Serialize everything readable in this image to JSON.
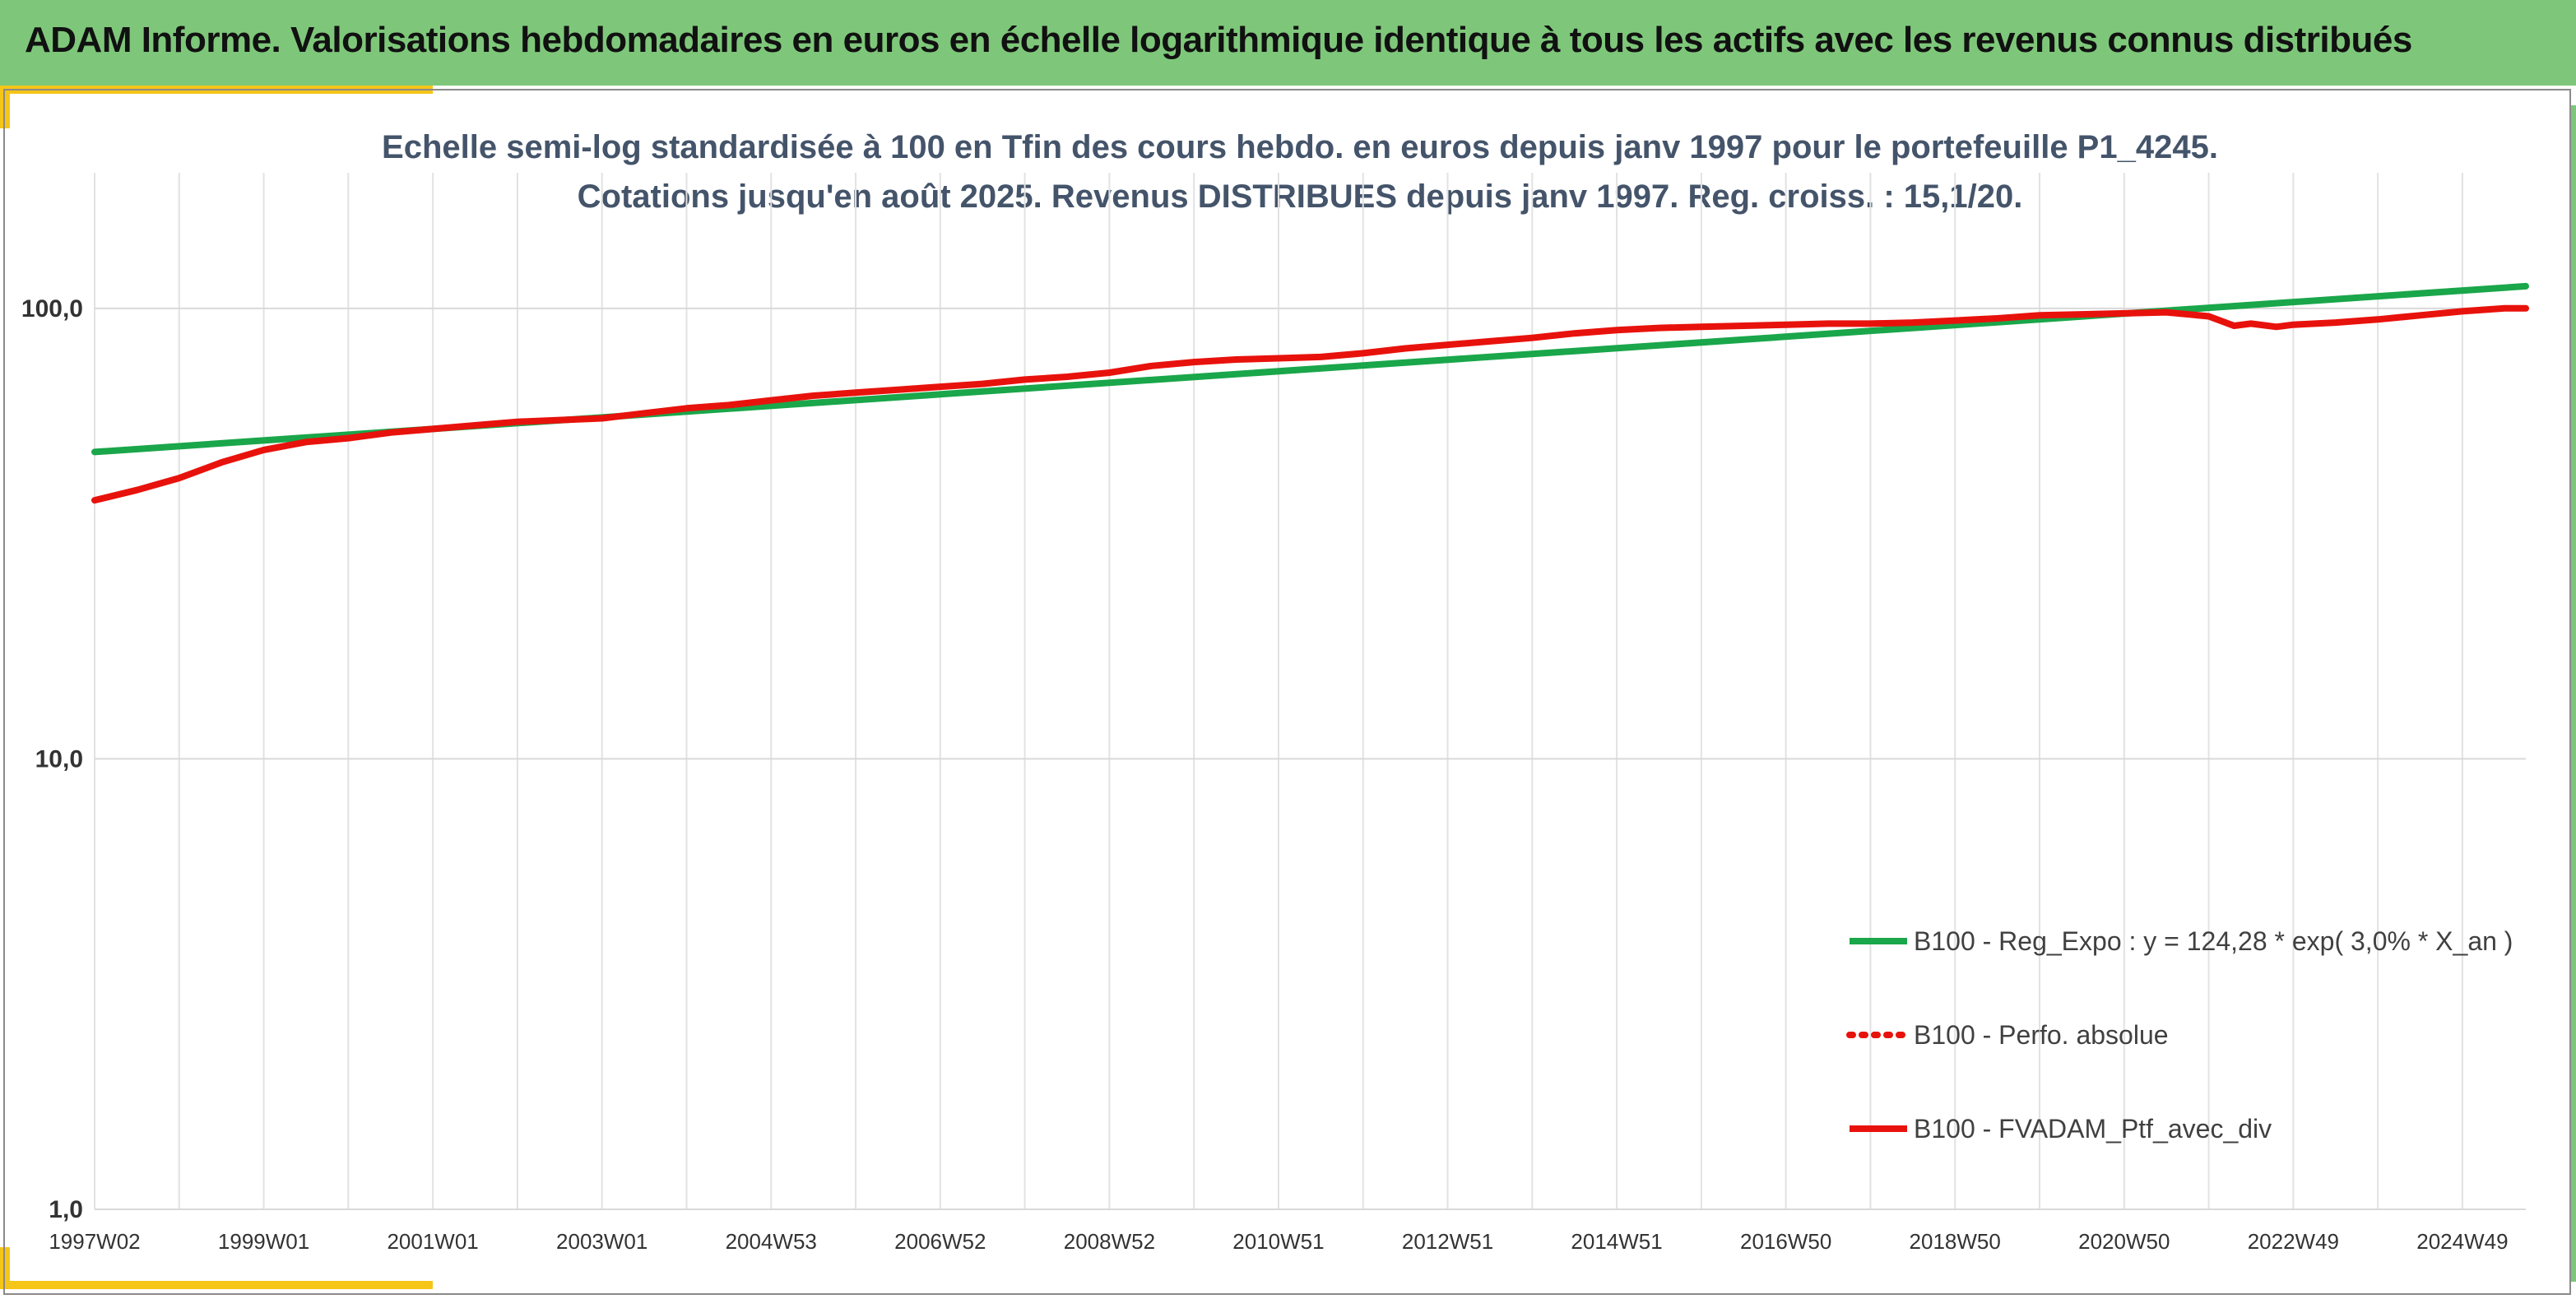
{
  "header": {
    "title": "ADAM Informe. Valorisations hebdomadaires en euros en échelle logarithmique identique à tous les actifs avec les revenus connus distribués"
  },
  "colors": {
    "banner": "#7ec77a",
    "accent": "#f5c518",
    "regression": "#1aa64a",
    "portfolio": "#e8120c"
  },
  "chart_data": {
    "type": "line",
    "title": "Echelle semi-log standardisée à 100 en Tfin des cours hebdo. en euros depuis janv 1997 pour le portefeuille P1_4245.",
    "subtitle": "Cotations jusqu'en août 2025. Revenus DISTRIBUES depuis janv 1997. Reg. croiss. : 15,1/20.",
    "y_scale": "log",
    "ylim": [
      1,
      200
    ],
    "y_ticks": [
      {
        "value": 1,
        "label": "1,0"
      },
      {
        "value": 10,
        "label": "10,0"
      },
      {
        "value": 100,
        "label": "100,0"
      }
    ],
    "x_range": [
      1997.0,
      2025.75
    ],
    "x_ticks": [
      {
        "x": 1997.0,
        "label": "1997W02"
      },
      {
        "x": 1999.0,
        "label": "1999W01"
      },
      {
        "x": 2001.0,
        "label": "2001W01"
      },
      {
        "x": 2003.0,
        "label": "2003W01"
      },
      {
        "x": 2005.0,
        "label": "2004W53"
      },
      {
        "x": 2007.0,
        "label": "2006W52"
      },
      {
        "x": 2009.0,
        "label": "2008W52"
      },
      {
        "x": 2011.0,
        "label": "2010W51"
      },
      {
        "x": 2013.0,
        "label": "2012W51"
      },
      {
        "x": 2015.0,
        "label": "2014W51"
      },
      {
        "x": 2017.0,
        "label": "2016W50"
      },
      {
        "x": 2019.0,
        "label": "2018W50"
      },
      {
        "x": 2021.0,
        "label": "2020W50"
      },
      {
        "x": 2023.0,
        "label": "2022W49"
      },
      {
        "x": 2025.0,
        "label": "2024W49"
      }
    ],
    "grid": true,
    "legend_position": "bottom-right",
    "series": [
      {
        "name": "B100 - Reg_Expo : y = 124,28 * exp( 3,0% *  X_an )",
        "color": "#1aa64a",
        "style": "solid",
        "points": [
          [
            1997.0,
            48.0
          ],
          [
            2025.75,
            112.0
          ]
        ]
      },
      {
        "name": "B100 - Perfo. absolue",
        "color": "#e8120c",
        "style": "dotted",
        "points": []
      },
      {
        "name": "B100 - FVADAM_Ptf_avec_div",
        "color": "#e8120c",
        "style": "solid",
        "points": [
          [
            1997.0,
            37.5
          ],
          [
            1997.5,
            39.5
          ],
          [
            1998.0,
            42.0
          ],
          [
            1998.5,
            45.5
          ],
          [
            1999.0,
            48.5
          ],
          [
            1999.5,
            50.5
          ],
          [
            2000.0,
            51.5
          ],
          [
            2000.5,
            53.0
          ],
          [
            2001.0,
            54.0
          ],
          [
            2001.5,
            55.0
          ],
          [
            2002.0,
            56.0
          ],
          [
            2002.5,
            56.5
          ],
          [
            2003.0,
            57.0
          ],
          [
            2003.5,
            58.5
          ],
          [
            2004.0,
            60.0
          ],
          [
            2004.5,
            61.0
          ],
          [
            2005.0,
            62.5
          ],
          [
            2005.5,
            64.0
          ],
          [
            2006.0,
            65.0
          ],
          [
            2006.5,
            66.0
          ],
          [
            2007.0,
            67.0
          ],
          [
            2007.5,
            68.0
          ],
          [
            2008.0,
            69.5
          ],
          [
            2008.5,
            70.5
          ],
          [
            2009.0,
            72.0
          ],
          [
            2009.5,
            74.5
          ],
          [
            2010.0,
            76.0
          ],
          [
            2010.5,
            77.0
          ],
          [
            2011.0,
            77.5
          ],
          [
            2011.5,
            78.0
          ],
          [
            2012.0,
            79.5
          ],
          [
            2012.5,
            81.5
          ],
          [
            2013.0,
            83.0
          ],
          [
            2013.5,
            84.5
          ],
          [
            2014.0,
            86.0
          ],
          [
            2014.5,
            88.0
          ],
          [
            2015.0,
            89.5
          ],
          [
            2015.5,
            90.5
          ],
          [
            2016.0,
            91.0
          ],
          [
            2016.5,
            91.5
          ],
          [
            2017.0,
            92.0
          ],
          [
            2017.5,
            92.5
          ],
          [
            2018.0,
            92.5
          ],
          [
            2018.5,
            93.0
          ],
          [
            2019.0,
            94.0
          ],
          [
            2019.5,
            95.0
          ],
          [
            2020.0,
            96.5
          ],
          [
            2020.5,
            97.0
          ],
          [
            2021.0,
            97.5
          ],
          [
            2021.5,
            98.0
          ],
          [
            2022.0,
            96.0
          ],
          [
            2022.3,
            91.5
          ],
          [
            2022.5,
            92.5
          ],
          [
            2022.8,
            91.0
          ],
          [
            2023.0,
            92.0
          ],
          [
            2023.5,
            93.0
          ],
          [
            2024.0,
            94.5
          ],
          [
            2024.5,
            96.5
          ],
          [
            2025.0,
            98.5
          ],
          [
            2025.5,
            100.0
          ],
          [
            2025.75,
            100.0
          ]
        ]
      }
    ]
  }
}
